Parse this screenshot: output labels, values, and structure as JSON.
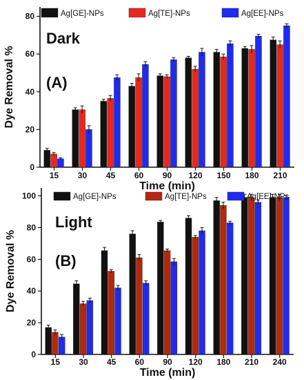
{
  "chart_data": [
    {
      "type": "bar",
      "panel_label": "(A)",
      "condition_label": "Dark",
      "xlabel": "Time (min)",
      "ylabel": "Dye Removal %",
      "ylim": [
        0,
        85
      ],
      "yticks": [
        0,
        20,
        40,
        60,
        80
      ],
      "categories": [
        "15",
        "30",
        "45",
        "60",
        "90",
        "120",
        "150",
        "180",
        "210"
      ],
      "series": [
        {
          "name": "Ag[GE]-NPs",
          "color": "#111111",
          "values": [
            9,
            30.5,
            35,
            43,
            48.5,
            58,
            61,
            63,
            67.5
          ],
          "errors": [
            1.0,
            1.0,
            1.0,
            1.5,
            1.0,
            0.8,
            1.5,
            1.0,
            1.5
          ]
        },
        {
          "name": "Ag[TE]-NPs",
          "color": "#e8281f",
          "values": [
            7,
            30.5,
            36.5,
            47.5,
            48,
            52,
            58.5,
            62.5,
            65
          ],
          "errors": [
            0.8,
            2.0,
            1.5,
            2.0,
            1.0,
            1.5,
            1.5,
            2.0,
            2.0
          ]
        },
        {
          "name": "Ag[EE]-NPs",
          "color": "#1f2bf0",
          "values": [
            4.5,
            20,
            47.5,
            54.5,
            57,
            61,
            65.5,
            69.5,
            75
          ],
          "errors": [
            0.5,
            2.0,
            1.5,
            1.5,
            1.0,
            2.0,
            1.5,
            1.0,
            1.0
          ]
        }
      ]
    },
    {
      "type": "bar",
      "panel_label": "(B)",
      "condition_label": "Light",
      "xlabel": "Time (min)",
      "ylabel": "Dye Removal %",
      "ylim": [
        0,
        105
      ],
      "yticks": [
        0,
        20,
        40,
        60,
        80,
        100
      ],
      "categories": [
        "15",
        "30",
        "45",
        "60",
        "90",
        "120",
        "180",
        "210",
        "240"
      ],
      "series": [
        {
          "name": "Ag[GE]-NPs",
          "color": "#111111",
          "values": [
            17,
            44.5,
            65.5,
            76,
            83.5,
            86,
            97,
            99,
            99
          ],
          "errors": [
            1.5,
            2.0,
            2.0,
            2.0,
            1.0,
            1.5,
            2.0,
            2.0,
            2.0
          ]
        },
        {
          "name": "Ag[TE]-NPs",
          "color": "#b5280f",
          "values": [
            14,
            32,
            52.5,
            61,
            65.5,
            74,
            94,
            99,
            99
          ],
          "errors": [
            1.5,
            1.5,
            1.0,
            2.0,
            1.0,
            1.0,
            2.0,
            2.0,
            2.0
          ]
        },
        {
          "name": "Ag[EE]-NPs",
          "color": "#1f2bf0",
          "values": [
            11,
            34,
            42,
            45,
            58.5,
            78,
            83,
            96,
            99
          ],
          "errors": [
            1.5,
            1.5,
            1.5,
            1.5,
            2.0,
            2.0,
            1.0,
            1.5,
            1.5
          ]
        }
      ]
    }
  ]
}
